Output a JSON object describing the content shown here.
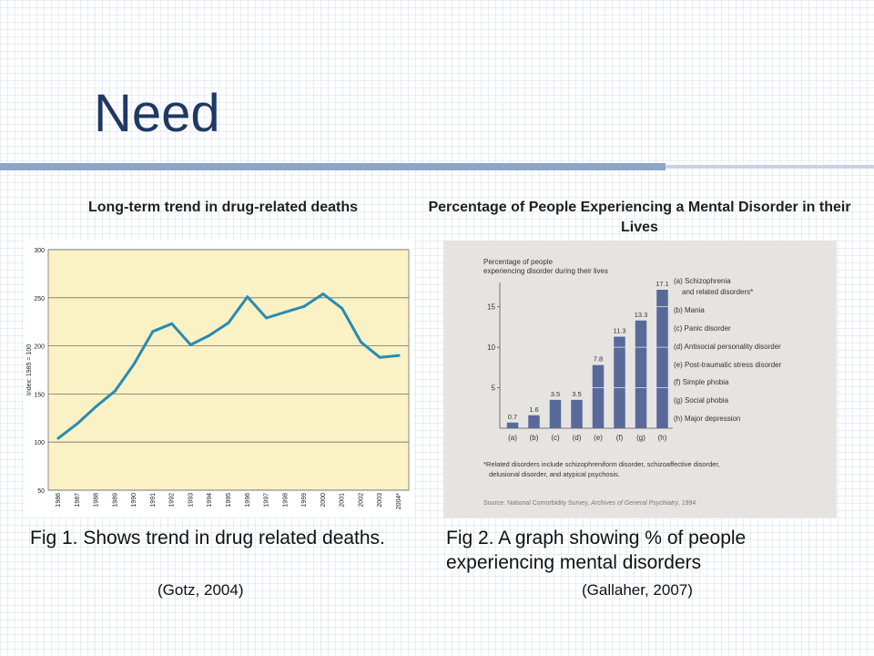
{
  "slide": {
    "title": "Need",
    "left_heading": "Long-term trend in drug-related deaths",
    "right_heading": "Percentage of People Experiencing a Mental Disorder in their Lives",
    "left_caption": "Fig 1. Shows trend in drug related deaths.",
    "right_caption": "Fig 2. A graph showing % of people experiencing mental disorders",
    "left_citation": "(Gotz, 2004)",
    "right_citation": "(Gallaher, 2007)"
  },
  "colors": {
    "title": "#1f3864",
    "line": "#2a8bb1",
    "line_plot_bg": "#faf2c4",
    "bar": "#58699a",
    "bar_panel_bg": "#e6e4e0"
  },
  "chart_data": [
    {
      "type": "line",
      "title": "",
      "ylabel": "Index: 1985 = 100",
      "xlabel": "",
      "x": [
        "1986",
        "1987",
        "1988",
        "1989",
        "1990",
        "1991",
        "1992",
        "1993",
        "1994",
        "1995",
        "1996",
        "1997",
        "1998",
        "1999",
        "2000",
        "2001",
        "2002",
        "2003",
        "2004*"
      ],
      "series": [
        {
          "values": [
            104,
            119,
            137,
            153,
            181,
            215,
            223,
            201,
            211,
            224,
            251,
            229,
            235,
            241,
            254,
            239,
            204,
            188,
            190
          ]
        }
      ],
      "ylim": [
        50,
        300
      ],
      "yticks": [
        50,
        100,
        150,
        200,
        250,
        300
      ],
      "grid": true
    },
    {
      "type": "bar",
      "title": "Percentage of people experiencing disorder during their lives",
      "categories": [
        "(a)",
        "(b)",
        "(c)",
        "(d)",
        "(e)",
        "(f)",
        "(g)",
        "(h)"
      ],
      "values": [
        0.7,
        1.6,
        3.5,
        3.5,
        7.8,
        11.3,
        13.3,
        17.1
      ],
      "value_labels": [
        "0.7",
        "1.6",
        "3.5",
        "3.5",
        "7.8",
        "11.3",
        "13.3",
        "17.1"
      ],
      "ylim": [
        0,
        18
      ],
      "yticks": [
        5,
        10,
        15
      ],
      "legend": [
        "(a) Schizophrenia",
        "and related disorders*",
        "(b) Mania",
        "(c) Panic disorder",
        "(d) Antisocial personality disorder",
        "(e) Post-traumatic stress disorder",
        "(f) Simple phobia",
        "(g) Social phobia",
        "(h) Major depression"
      ],
      "footnote_lines": [
        "*Related disorders include schizophreniform disorder, schizoaffective disorder,",
        "delusional disorder, and atypical psychosis."
      ],
      "source_prefix": "Source: National Comorbidity Survey, ",
      "source_journal": "Archives of General Psychiatry",
      "source_suffix": ", 1994"
    }
  ]
}
